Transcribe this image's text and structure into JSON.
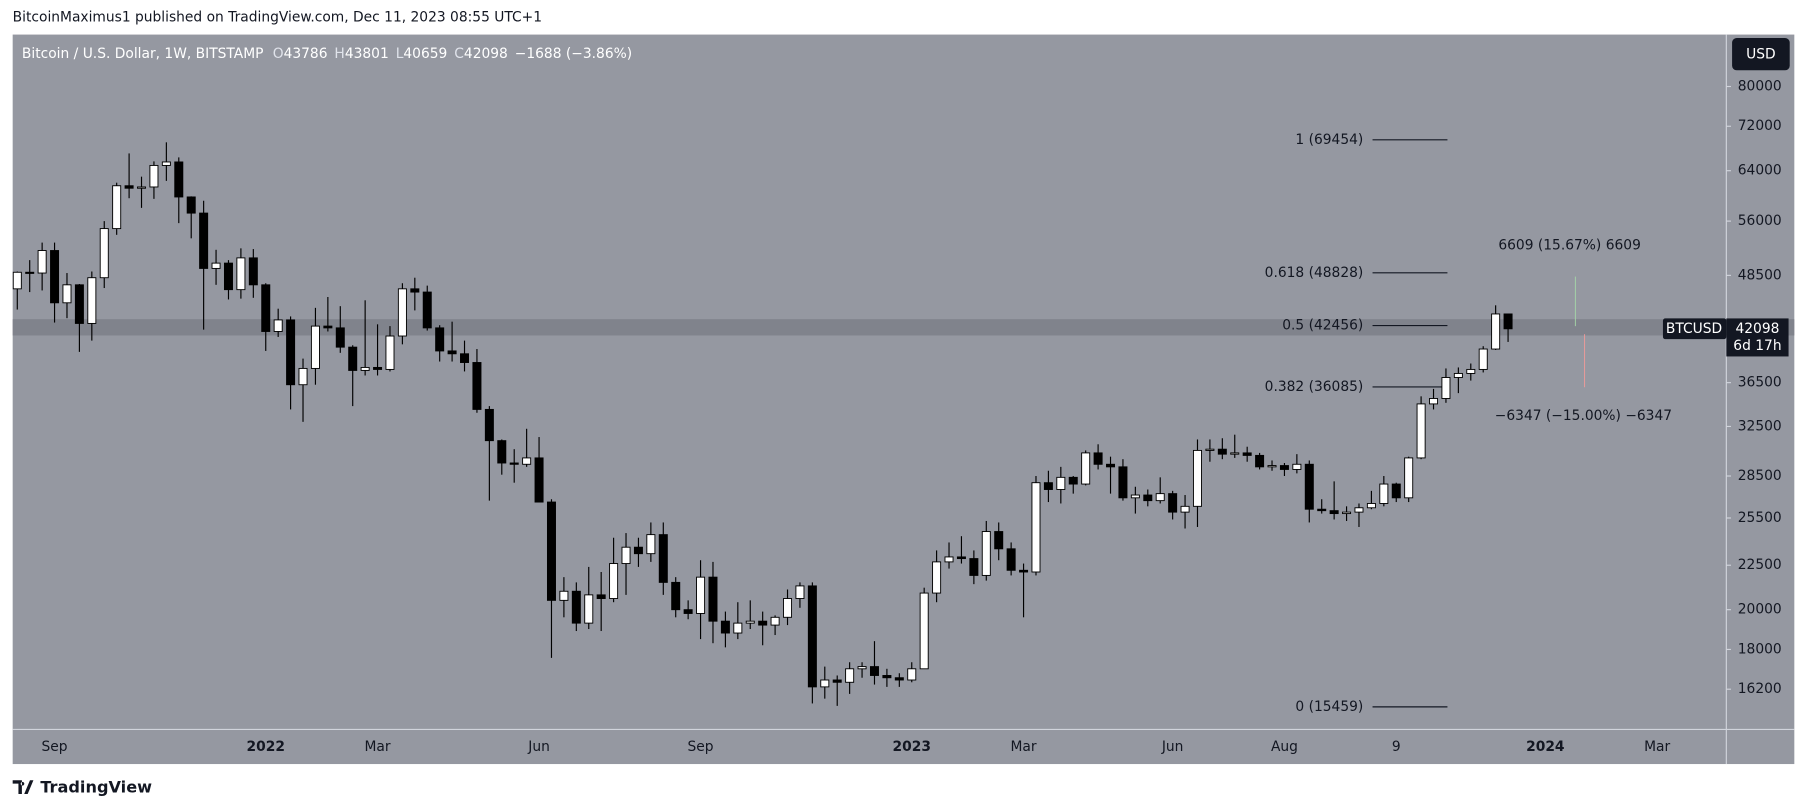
{
  "header": {
    "publisher": "BitcoinMaximus1 published on TradingView.com, Dec 11, 2023 08:55 UTC+1"
  },
  "chart_data": {
    "type": "candlestick",
    "title": "Bitcoin / U.S. Dollar, 1W, BITSTAMP",
    "ohlc_labels": [
      "O",
      "H",
      "L",
      "C"
    ],
    "change": "−1688 (−3.86%)",
    "categories": [
      null,
      null,
      null,
      "Sep",
      null,
      null,
      null,
      null,
      null,
      null,
      null,
      null,
      null,
      null,
      null,
      null,
      null,
      null,
      null,
      null,
      "2022",
      null,
      null,
      null,
      null,
      null,
      null,
      null,
      null,
      "Mar",
      null,
      null,
      null,
      null,
      null,
      null,
      null,
      null,
      null,
      null,
      null,
      null,
      "Jun",
      null,
      null,
      null,
      null,
      null,
      null,
      null,
      null,
      null,
      null,
      null,
      null,
      "Sep",
      null,
      null,
      null,
      null,
      null,
      null,
      null,
      null,
      null,
      null,
      null,
      null,
      null,
      null,
      null,
      null,
      "2023",
      null,
      null,
      null,
      null,
      null,
      null,
      null,
      null,
      "Mar",
      null,
      null,
      null,
      null,
      null,
      null,
      null,
      null,
      null,
      null,
      null,
      "Jun",
      null,
      null,
      null,
      null,
      null,
      null,
      null,
      null,
      "Aug",
      null,
      null,
      null,
      null,
      null,
      null,
      null,
      null,
      "9",
      null,
      null,
      null,
      null,
      null,
      null,
      null,
      null,
      null,
      null,
      null,
      "2024",
      null,
      null,
      null,
      null,
      null,
      null,
      null,
      null,
      "Mar",
      null
    ],
    "series": [
      {
        "name": "BTCUSD",
        "up_color": "#ffffff",
        "down_color": "#000000",
        "open": [
          46800,
          48900,
          48800,
          51800,
          45100,
          47300,
          42700,
          48200,
          54900,
          61500,
          61100,
          61300,
          64900,
          65500,
          59700,
          57200,
          49400,
          50100,
          46700,
          50800,
          47300,
          41800,
          43100,
          36300,
          37900,
          42400,
          42200,
          40100,
          37700,
          38000,
          37800,
          41300,
          46800,
          46400,
          42200,
          39700,
          39400,
          38500,
          34000,
          31300,
          29500,
          29400,
          29900,
          26600,
          20500,
          21000,
          19300,
          20800,
          20600,
          22600,
          23600,
          23200,
          24400,
          21500,
          20000,
          19800,
          21800,
          19400,
          18800,
          19300,
          19400,
          19200,
          19600,
          20600,
          21300,
          16300,
          16600,
          16500,
          17100,
          17200,
          16800,
          16700,
          16600,
          17100,
          20900,
          22700,
          23000,
          22900,
          21900,
          24600,
          23500,
          22200,
          22100,
          28000,
          27500,
          28400,
          27900,
          30300,
          29400,
          29200,
          26900,
          27100,
          26700,
          27200,
          25900,
          26300,
          30500,
          30600,
          30200,
          30300,
          30100,
          29200,
          29300,
          29000,
          29400,
          26100,
          26000,
          25800,
          25900,
          26200,
          26500,
          27900,
          26900,
          29900,
          34500,
          35000,
          37000,
          37400,
          37800,
          39900,
          43786,
          null,
          null,
          null,
          null,
          null,
          null,
          null,
          null,
          null,
          null,
          null,
          null,
          null
        ],
        "high": [
          49000,
          50500,
          52900,
          52900,
          48800,
          47400,
          49000,
          56000,
          62000,
          67000,
          63000,
          65600,
          69000,
          66300,
          59800,
          59100,
          51900,
          50500,
          52100,
          52000,
          47500,
          44400,
          43500,
          38900,
          44500,
          45800,
          44700,
          40300,
          45400,
          42600,
          42400,
          47500,
          48200,
          47200,
          42500,
          42900,
          40800,
          39900,
          34300,
          31400,
          30600,
          32300,
          31600,
          26800,
          21800,
          21500,
          22400,
          22100,
          24200,
          24500,
          24200,
          25200,
          25200,
          21800,
          20500,
          22800,
          22700,
          19900,
          20400,
          20500,
          19900,
          19700,
          21100,
          21500,
          21500,
          17200,
          16800,
          17400,
          17400,
          18400,
          17100,
          16900,
          17400,
          21200,
          23400,
          23900,
          24300,
          23400,
          25300,
          25200,
          23900,
          22600,
          28500,
          28900,
          29200,
          28500,
          30500,
          31000,
          30000,
          29800,
          27700,
          27500,
          28400,
          27400,
          27100,
          31400,
          31400,
          31500,
          31800,
          30800,
          30300,
          29700,
          29500,
          30200,
          29700,
          26800,
          28100,
          26300,
          26500,
          27400,
          28500,
          28000,
          30000,
          35200,
          35900,
          37900,
          38000,
          38400,
          40200,
          44800,
          43801,
          null,
          null,
          null,
          null,
          null,
          null,
          null,
          null,
          null,
          null,
          null,
          null,
          null
        ],
        "low": [
          44300,
          46400,
          46600,
          42800,
          43300,
          39600,
          40800,
          46900,
          54000,
          59500,
          58000,
          59400,
          62300,
          55700,
          53500,
          42000,
          47300,
          45500,
          45600,
          45700,
          39700,
          41200,
          34000,
          32900,
          36300,
          41800,
          39500,
          34300,
          37200,
          37200,
          37600,
          40400,
          44200,
          41900,
          38600,
          38600,
          37600,
          33700,
          26700,
          28600,
          28000,
          29200,
          26600,
          17600,
          19600,
          18900,
          19000,
          18900,
          20400,
          20800,
          22400,
          22700,
          20800,
          19600,
          19500,
          18500,
          18300,
          18100,
          18500,
          19000,
          18200,
          18700,
          19200,
          20100,
          15600,
          15800,
          15500,
          16000,
          16700,
          16400,
          16300,
          16300,
          16500,
          17100,
          20400,
          22300,
          22600,
          21400,
          21600,
          22800,
          21900,
          19600,
          21900,
          26600,
          26500,
          27200,
          27800,
          29000,
          27200,
          26700,
          25800,
          26300,
          26500,
          25400,
          24800,
          24900,
          29600,
          29800,
          29900,
          29600,
          29000,
          28900,
          28500,
          28700,
          25200,
          25800,
          25400,
          25300,
          24900,
          26100,
          26300,
          26600,
          26600,
          29800,
          34000,
          34600,
          35500,
          36700,
          37500,
          39800,
          40659,
          null,
          null,
          null,
          null,
          null,
          null,
          null,
          null,
          null,
          null,
          null,
          null,
          null
        ],
        "close": [
          48900,
          48800,
          51800,
          45100,
          47300,
          42700,
          48200,
          54900,
          61500,
          61100,
          61300,
          64900,
          65500,
          59700,
          57200,
          49400,
          50100,
          46700,
          50800,
          47300,
          41800,
          43100,
          36300,
          37900,
          42400,
          42200,
          40100,
          37700,
          38000,
          37800,
          41300,
          46800,
          46400,
          42200,
          39700,
          39400,
          38500,
          34000,
          31300,
          29500,
          29400,
          29900,
          26600,
          20500,
          21000,
          19300,
          20800,
          20600,
          22600,
          23600,
          23200,
          24400,
          21500,
          20000,
          19800,
          21800,
          19400,
          18800,
          19300,
          19400,
          19200,
          19600,
          20600,
          21300,
          16300,
          16600,
          16500,
          17100,
          17200,
          16800,
          16700,
          16600,
          17100,
          20900,
          22700,
          23000,
          22900,
          21900,
          24600,
          23500,
          22200,
          22100,
          28000,
          27500,
          28400,
          27900,
          30300,
          29400,
          29200,
          26900,
          27100,
          26700,
          27200,
          25900,
          26300,
          30500,
          30600,
          30200,
          30300,
          30100,
          29200,
          29300,
          29000,
          29400,
          26100,
          26000,
          25800,
          25900,
          26200,
          26500,
          27900,
          26900,
          29900,
          34500,
          35000,
          37000,
          37400,
          37800,
          39900,
          43786,
          42098,
          null,
          null,
          null,
          null,
          null,
          null,
          null,
          null,
          null,
          null,
          null,
          null,
          null
        ]
      }
    ],
    "log_scale": true,
    "ylim": [
      14560,
      91800
    ],
    "yticks": [
      16200,
      18000,
      20000,
      22500,
      25500,
      28500,
      32500,
      36500,
      48500,
      56000,
      64000,
      72000,
      80000
    ],
    "currency": "USD",
    "countdown": "6d 17h",
    "zone": [
      41360,
      43180
    ],
    "fib_levels": [
      {
        "value": 69454,
        "label": "1 (69454)"
      },
      {
        "value": 48828,
        "label": "0.618 (48828)"
      },
      {
        "value": 42456,
        "label": "0.5 (42456)"
      },
      {
        "value": 36085,
        "label": "0.382 (36085)"
      },
      {
        "value": 15459,
        "label": "0 (15459)"
      }
    ],
    "annotations": [
      "6609 (15.67%) 6609",
      "−6347 (−15.00%) −6347"
    ]
  },
  "footer": {
    "brand": "TradingView"
  }
}
